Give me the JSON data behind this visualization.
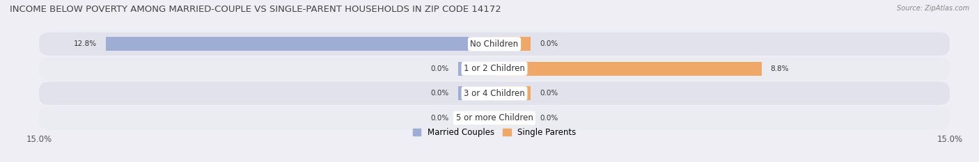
{
  "title": "INCOME BELOW POVERTY AMONG MARRIED-COUPLE VS SINGLE-PARENT HOUSEHOLDS IN ZIP CODE 14172",
  "source": "Source: ZipAtlas.com",
  "categories": [
    "No Children",
    "1 or 2 Children",
    "3 or 4 Children",
    "5 or more Children"
  ],
  "married_values": [
    12.8,
    0.0,
    0.0,
    0.0
  ],
  "single_values": [
    0.0,
    8.8,
    0.0,
    0.0
  ],
  "married_color": "#9dadd4",
  "single_color": "#f0a868",
  "married_label": "Married Couples",
  "single_label": "Single Parents",
  "xlim": 15.0,
  "bar_height": 0.55,
  "stub_size": 1.2,
  "bg_color": "#eeeef4",
  "row_bg_dark": "#e2e2ec",
  "row_bg_light": "#ebebf2",
  "value_fontsize": 7.5,
  "category_fontsize": 8.5,
  "title_fontsize": 9.5,
  "axis_label_fontsize": 8.5,
  "legend_fontsize": 8.5,
  "title_color": "#444444",
  "source_color": "#888888",
  "value_color": "#333333"
}
